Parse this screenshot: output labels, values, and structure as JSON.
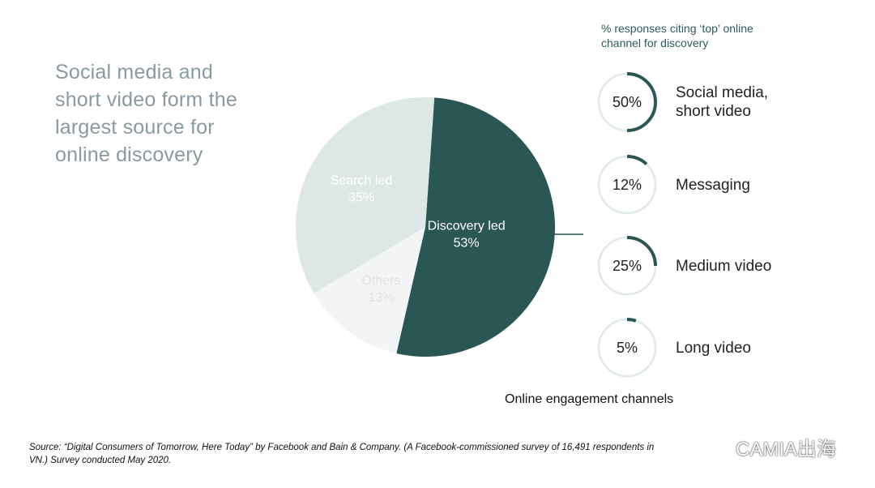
{
  "headline": {
    "lines": [
      "Social media and",
      "short video form the",
      "largest source for",
      "online discovery"
    ]
  },
  "chart_data": [
    {
      "type": "pie",
      "title": "",
      "slices": [
        {
          "label": "Discovery led",
          "value": 53,
          "display": "53%",
          "color": "#2a5653",
          "text_color": "#ffffff"
        },
        {
          "label": "Others",
          "value": 13,
          "display": "13%",
          "color": "#f3f4f6",
          "text_color": "#e0e2e4"
        },
        {
          "label": "Search led",
          "value": 35,
          "display": "35%",
          "color": "#dde8e6",
          "text_color": "#ffffff"
        }
      ]
    },
    {
      "type": "bar",
      "title": "% responses citing 'top' online channel for discovery",
      "caption": "Online engagement channels",
      "categories": [
        "Social media, short video",
        "Messaging",
        "Medium video",
        "Long video"
      ],
      "values": [
        50,
        12,
        25,
        5
      ],
      "display": [
        "50%",
        "12%",
        "25%",
        "5%"
      ]
    }
  ],
  "panel": {
    "title_lines": [
      "% responses citing ‘top’ online",
      "channel for discovery"
    ],
    "channels": [
      {
        "value": 50,
        "display": "50%",
        "label_lines": [
          "Social media,",
          "short video"
        ]
      },
      {
        "value": 12,
        "display": "12%",
        "label_lines": [
          "Messaging"
        ]
      },
      {
        "value": 25,
        "display": "25%",
        "label_lines": [
          "Medium video"
        ]
      },
      {
        "value": 5,
        "display": "5%",
        "label_lines": [
          "Long video"
        ]
      }
    ],
    "caption": "Online engagement channels"
  },
  "source": {
    "line1": "Source: “Digital Consumers of Tomorrow, Here Today” by Facebook and Bain & Company. (A Facebook-commissioned survey of 16,491 respondents in",
    "line2": "VN.) Survey conducted May 2020."
  },
  "watermark": {
    "text": "CAMIA出海"
  },
  "colors": {
    "dark_teal": "#2a5653",
    "light_teal": "#dde8e6",
    "ring_track": "#dfe9e7",
    "headline": "#8a9aa0"
  }
}
